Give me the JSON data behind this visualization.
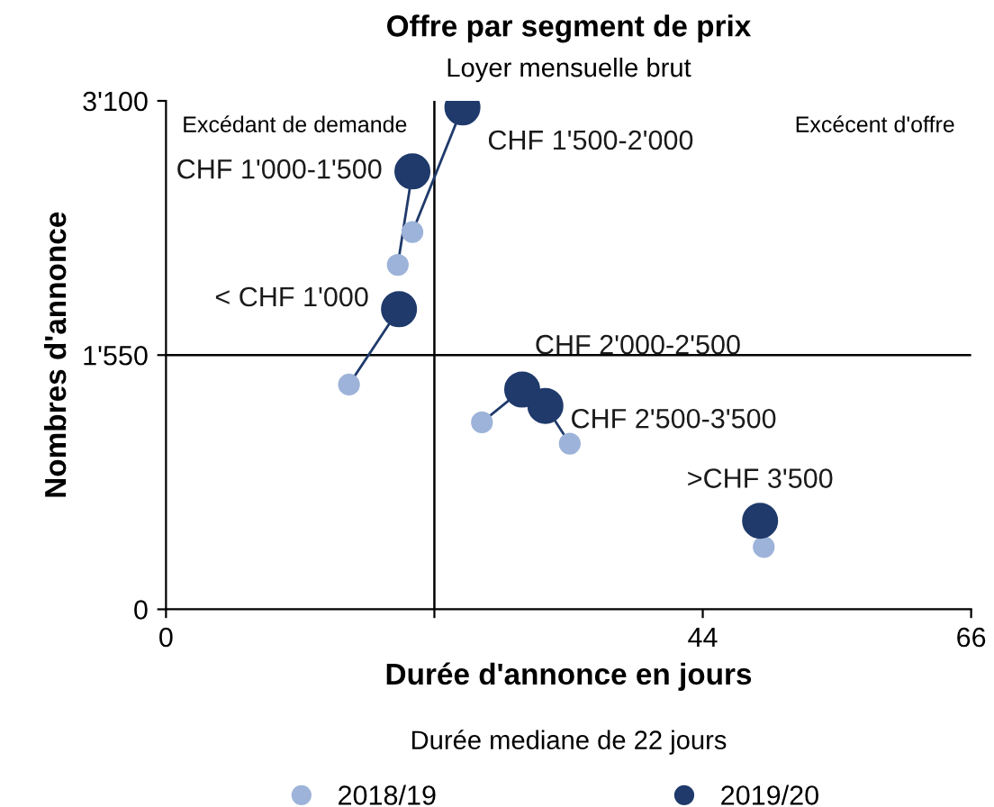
{
  "chart_data": {
    "type": "scatter",
    "title": "Offre par segment de prix",
    "subtitle": "Loyer mensuelle brut",
    "xlabel": "Durée d'annonce en jours",
    "ylabel": "Nombres d'annonce",
    "xlim": [
      0,
      66
    ],
    "xticks": [
      0,
      {
        "value": 22,
        "label": null
      },
      44,
      66
    ],
    "ylim": [
      0,
      3100
    ],
    "yticks": [
      {
        "value": 0,
        "label": "0"
      },
      {
        "value": 1550,
        "label": "1'550"
      },
      {
        "value": 3100,
        "label": "3'100"
      }
    ],
    "series": [
      {
        "name": "2018/19",
        "color": "#9db3d9",
        "x": [
          19.0,
          20.2,
          15.0,
          25.9,
          33.1,
          49.0
        ],
        "values": [
          2100,
          2300,
          1370,
          1140,
          1010,
          380
        ]
      },
      {
        "name": "2019/20",
        "color": "#1f3a6b",
        "x": [
          20.2,
          24.3,
          19.1,
          29.2,
          31.1,
          48.7
        ],
        "values": [
          2670,
          3060,
          1830,
          1340,
          1240,
          540
        ]
      }
    ],
    "ref_lines": [
      {
        "axis": "x",
        "value": 22,
        "label": null,
        "color": "#000000"
      },
      {
        "axis": "y",
        "value": 1550,
        "label": null,
        "color": "#000000"
      }
    ],
    "annotations": [
      {
        "text": "CHF 1'000-1'500",
        "x": 20.2,
        "y": 2670
      },
      {
        "text": "CHF 1'500-2'000",
        "x": 24.3,
        "y": 3060
      },
      {
        "text": "< CHF 1'000",
        "x": 19.1,
        "y": 1830
      },
      {
        "text": "CHF 2'000-2'500",
        "x": 29.2,
        "y": 1340
      },
      {
        "text": "CHF 2'500-3'500",
        "x": 31.1,
        "y": 1240
      },
      {
        "text": ">CHF 3'500",
        "x": 48.7,
        "y": 540
      },
      "Excédant de demande",
      "Excécent d'offre",
      "Durée mediane de 22 jours"
    ],
    "legend": "bottom",
    "grid": false,
    "marker": "circle"
  }
}
